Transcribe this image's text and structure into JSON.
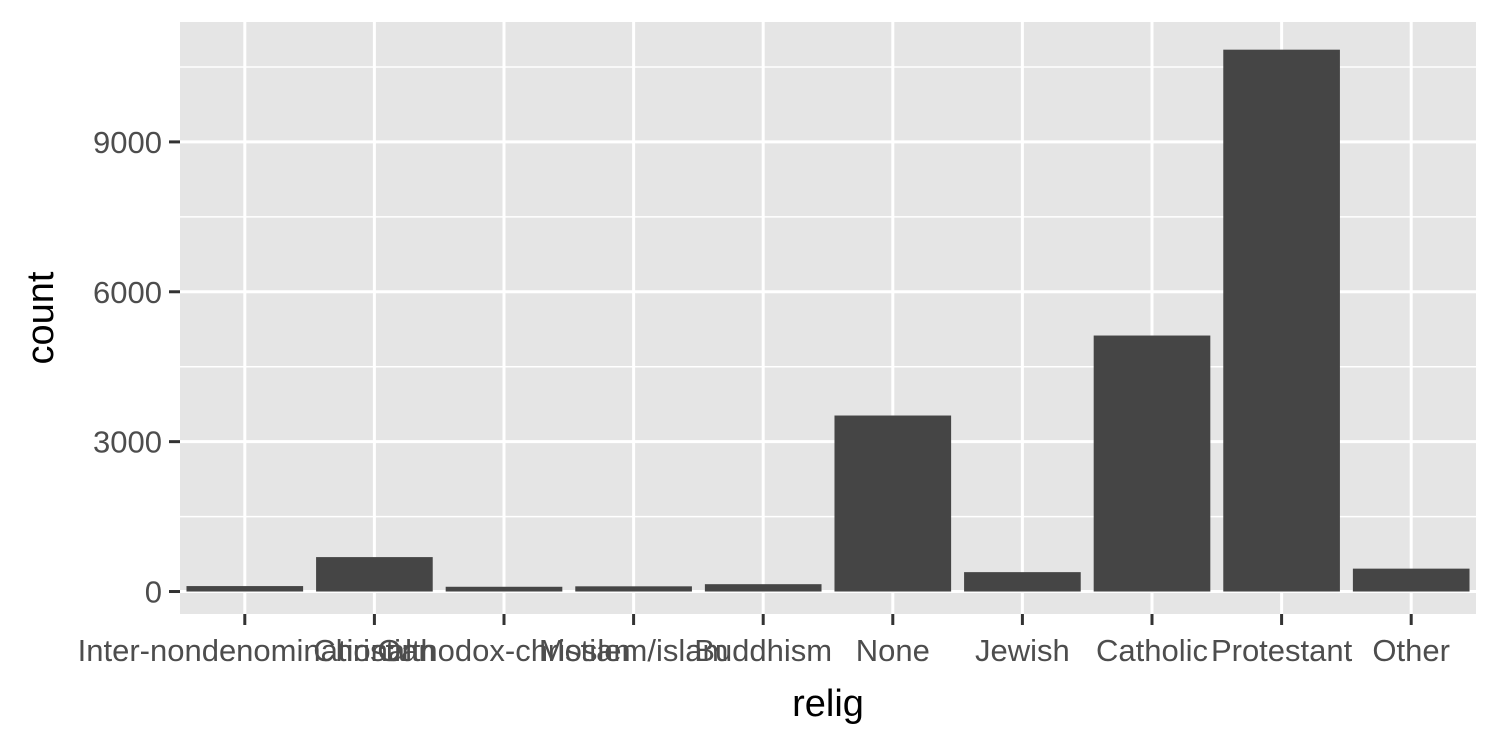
{
  "chart_data": {
    "type": "bar",
    "categories": [
      "Inter-nondenominational",
      "Christian",
      "Orthodox-christian",
      "Moslem/islam",
      "Buddhism",
      "None",
      "Jewish",
      "Catholic",
      "Protestant",
      "Other"
    ],
    "values": [
      109,
      689,
      95,
      104,
      147,
      3523,
      388,
      5124,
      10846,
      458
    ],
    "xlabel": "relig",
    "ylabel": "count",
    "ylim": [
      -450,
      11400
    ],
    "yticks": [
      0,
      3000,
      6000,
      9000
    ],
    "ytick_labels": [
      "0",
      "3000",
      "6000",
      "9000"
    ],
    "grid": true,
    "bar_color": "#454545",
    "panel_color": "#e5e5e5"
  }
}
